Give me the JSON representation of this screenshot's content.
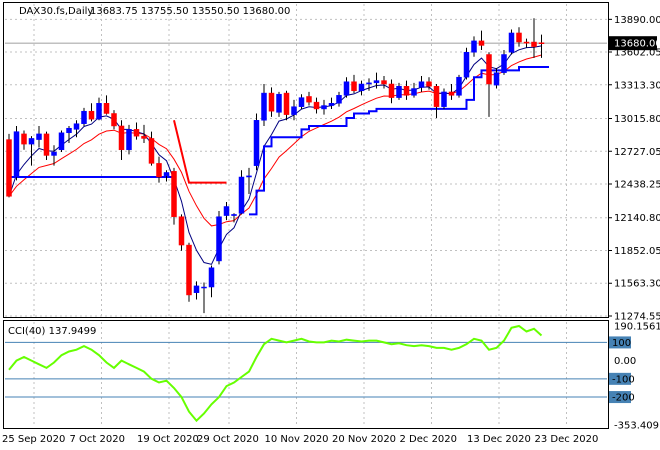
{
  "header": {
    "symbol": "DAX30.fs,Daily",
    "ohlc": "13683.75 13755.50 13550.50 13680.00"
  },
  "price_panel": {
    "y_ticks": [
      "13890.00",
      "13602.05",
      "13313.30",
      "13015.80",
      "12727.05",
      "12438.25",
      "12140.80",
      "11852.05",
      "11563.30",
      "11274.55"
    ],
    "current_price_label": "13680.00"
  },
  "cci_panel": {
    "title": "CCI(40) 137.9499",
    "y_labels": [
      "190.1561",
      "100",
      "0.00",
      "-100",
      "-200",
      "-353.409"
    ]
  },
  "x_axis": {
    "labels": [
      "25 Sep 2020",
      "7 Oct 2020",
      "19 Oct 2020",
      "29 Oct 2020",
      "10 Nov 2020",
      "20 Nov 2020",
      "2 Dec 2020",
      "13 Dec 2020",
      "23 Dec 2020"
    ]
  },
  "colors": {
    "bull": "#0000ff",
    "bear": "#ff0000",
    "fast_ma": "#000080",
    "slow_ma": "#ff0000",
    "cci_line": "#66ff00",
    "levels": "#4682b4",
    "grid": "#c0c0c0"
  },
  "chart_data": {
    "type": "candlestick",
    "ylim": [
      11274.55,
      13990
    ],
    "candles": [
      {
        "o": 12830,
        "h": 12880,
        "l": 12320,
        "c": 12330
      },
      {
        "o": 12500,
        "h": 12950,
        "l": 12470,
        "c": 12900
      },
      {
        "o": 12880,
        "h": 12910,
        "l": 12740,
        "c": 12790
      },
      {
        "o": 12790,
        "h": 12860,
        "l": 12600,
        "c": 12840
      },
      {
        "o": 12830,
        "h": 12950,
        "l": 12760,
        "c": 12880
      },
      {
        "o": 12880,
        "h": 12900,
        "l": 12650,
        "c": 12690
      },
      {
        "o": 12690,
        "h": 12780,
        "l": 12600,
        "c": 12720
      },
      {
        "o": 12740,
        "h": 12910,
        "l": 12720,
        "c": 12890
      },
      {
        "o": 12890,
        "h": 12950,
        "l": 12800,
        "c": 12930
      },
      {
        "o": 12920,
        "h": 13000,
        "l": 12850,
        "c": 12970
      },
      {
        "o": 12970,
        "h": 13110,
        "l": 12950,
        "c": 13080
      },
      {
        "o": 13080,
        "h": 13150,
        "l": 12990,
        "c": 13010
      },
      {
        "o": 13010,
        "h": 13200,
        "l": 13000,
        "c": 13150
      },
      {
        "o": 13150,
        "h": 13220,
        "l": 13050,
        "c": 13060
      },
      {
        "o": 13060,
        "h": 13090,
        "l": 12920,
        "c": 12950
      },
      {
        "o": 12950,
        "h": 13000,
        "l": 12650,
        "c": 12740
      },
      {
        "o": 12740,
        "h": 12960,
        "l": 12700,
        "c": 12920
      },
      {
        "o": 12920,
        "h": 12980,
        "l": 12830,
        "c": 12860
      },
      {
        "o": 12860,
        "h": 12960,
        "l": 12800,
        "c": 12840
      },
      {
        "o": 12840,
        "h": 12900,
        "l": 12600,
        "c": 12620
      },
      {
        "o": 12620,
        "h": 12680,
        "l": 12450,
        "c": 12500
      },
      {
        "o": 12510,
        "h": 12560,
        "l": 12460,
        "c": 12540
      },
      {
        "o": 12550,
        "h": 12580,
        "l": 12080,
        "c": 12150
      },
      {
        "o": 12150,
        "h": 12170,
        "l": 11850,
        "c": 11900
      },
      {
        "o": 11900,
        "h": 11920,
        "l": 11400,
        "c": 11460
      },
      {
        "o": 11480,
        "h": 11580,
        "l": 11420,
        "c": 11540
      },
      {
        "o": 11530,
        "h": 11570,
        "l": 11300,
        "c": 11530
      },
      {
        "o": 11530,
        "h": 11720,
        "l": 11440,
        "c": 11700
      },
      {
        "o": 11760,
        "h": 12200,
        "l": 11730,
        "c": 12150
      },
      {
        "o": 12160,
        "h": 12280,
        "l": 12120,
        "c": 12240
      },
      {
        "o": 12160,
        "h": 12180,
        "l": 12100,
        "c": 12170
      },
      {
        "o": 12180,
        "h": 12560,
        "l": 12170,
        "c": 12500
      },
      {
        "o": 12500,
        "h": 12580,
        "l": 12350,
        "c": 12510
      },
      {
        "o": 12600,
        "h": 13060,
        "l": 12560,
        "c": 13000
      },
      {
        "o": 13000,
        "h": 13320,
        "l": 12950,
        "c": 13240
      },
      {
        "o": 13240,
        "h": 13290,
        "l": 13030,
        "c": 13080
      },
      {
        "o": 13070,
        "h": 13250,
        "l": 13030,
        "c": 13230
      },
      {
        "o": 13240,
        "h": 13260,
        "l": 13000,
        "c": 13050
      },
      {
        "o": 13050,
        "h": 13180,
        "l": 13000,
        "c": 13120
      },
      {
        "o": 13120,
        "h": 13230,
        "l": 13100,
        "c": 13200
      },
      {
        "o": 13210,
        "h": 13250,
        "l": 13130,
        "c": 13160
      },
      {
        "o": 13160,
        "h": 13200,
        "l": 13060,
        "c": 13100
      },
      {
        "o": 13100,
        "h": 13180,
        "l": 13050,
        "c": 13130
      },
      {
        "o": 13130,
        "h": 13200,
        "l": 13100,
        "c": 13150
      },
      {
        "o": 13150,
        "h": 13250,
        "l": 13120,
        "c": 13220
      },
      {
        "o": 13220,
        "h": 13380,
        "l": 13200,
        "c": 13340
      },
      {
        "o": 13340,
        "h": 13400,
        "l": 13240,
        "c": 13260
      },
      {
        "o": 13260,
        "h": 13350,
        "l": 13220,
        "c": 13320
      },
      {
        "o": 13320,
        "h": 13370,
        "l": 13260,
        "c": 13330
      },
      {
        "o": 13330,
        "h": 13420,
        "l": 13280,
        "c": 13350
      },
      {
        "o": 13350,
        "h": 13390,
        "l": 13280,
        "c": 13320
      },
      {
        "o": 13320,
        "h": 13360,
        "l": 13150,
        "c": 13200
      },
      {
        "o": 13200,
        "h": 13330,
        "l": 13180,
        "c": 13300
      },
      {
        "o": 13300,
        "h": 13350,
        "l": 13180,
        "c": 13220
      },
      {
        "o": 13220,
        "h": 13330,
        "l": 13200,
        "c": 13280
      },
      {
        "o": 13290,
        "h": 13390,
        "l": 13250,
        "c": 13340
      },
      {
        "o": 13340,
        "h": 13380,
        "l": 13270,
        "c": 13300
      },
      {
        "o": 13300,
        "h": 13320,
        "l": 13020,
        "c": 13120
      },
      {
        "o": 13120,
        "h": 13280,
        "l": 13100,
        "c": 13250
      },
      {
        "o": 13250,
        "h": 13320,
        "l": 13180,
        "c": 13220
      },
      {
        "o": 13220,
        "h": 13400,
        "l": 13200,
        "c": 13380
      },
      {
        "o": 13380,
        "h": 13640,
        "l": 13360,
        "c": 13600
      },
      {
        "o": 13600,
        "h": 13740,
        "l": 13560,
        "c": 13700
      },
      {
        "o": 13700,
        "h": 13790,
        "l": 13620,
        "c": 13660
      },
      {
        "o": 13580,
        "h": 13600,
        "l": 13030,
        "c": 13320
      },
      {
        "o": 13310,
        "h": 13460,
        "l": 13280,
        "c": 13420
      },
      {
        "o": 13420,
        "h": 13620,
        "l": 13400,
        "c": 13580
      },
      {
        "o": 13600,
        "h": 13800,
        "l": 13580,
        "c": 13770
      },
      {
        "o": 13770,
        "h": 13820,
        "l": 13650,
        "c": 13690
      },
      {
        "o": 13690,
        "h": 13720,
        "l": 13640,
        "c": 13680
      },
      {
        "o": 13690,
        "h": 13900,
        "l": 13550,
        "c": 13650
      },
      {
        "o": 13683.75,
        "h": 13755.5,
        "l": 13550.5,
        "c": 13680
      }
    ],
    "cci_values": [
      -50,
      0,
      20,
      0,
      -20,
      -40,
      -10,
      30,
      50,
      60,
      80,
      60,
      30,
      -10,
      -40,
      0,
      -20,
      -40,
      -60,
      -100,
      -120,
      -110,
      -150,
      -200,
      -280,
      -330,
      -290,
      -240,
      -200,
      -140,
      -120,
      -90,
      -60,
      20,
      90,
      120,
      110,
      100,
      110,
      120,
      105,
      100,
      100,
      110,
      105,
      115,
      110,
      105,
      110,
      110,
      100,
      90,
      95,
      85,
      80,
      85,
      80,
      70,
      70,
      60,
      70,
      90,
      120,
      110,
      60,
      70,
      110,
      180,
      190,
      160,
      175,
      138
    ]
  }
}
